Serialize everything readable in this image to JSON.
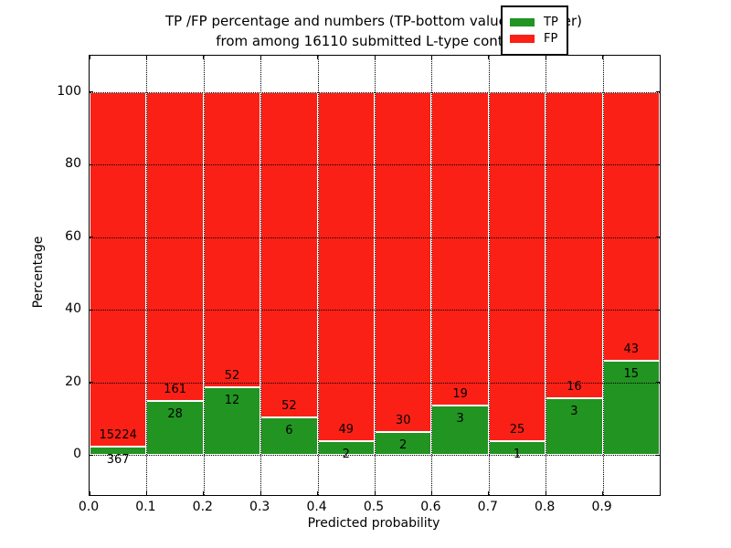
{
  "figure": {
    "title_line1": "TP /FP percentage and numbers (TP-bottom value, FP-upper)",
    "title_line2": "from among 16110 submitted L-type contacts"
  },
  "chart_data": {
    "type": "bar",
    "stacked": true,
    "normalized_to_percent": true,
    "title": "TP /FP percentage and numbers (TP-bottom value, FP-upper)\nfrom among 16110 submitted L-type contacts",
    "xlabel": "Predicted probability",
    "ylabel": "Percentage",
    "total_submitted_contacts": 16110,
    "bin_width": 0.1,
    "bin_starts": [
      0.0,
      0.1,
      0.2,
      0.3,
      0.4,
      0.5,
      0.6,
      0.7,
      0.8,
      0.9
    ],
    "categories": [
      "0.0-0.1",
      "0.1-0.2",
      "0.2-0.3",
      "0.3-0.4",
      "0.4-0.5",
      "0.5-0.6",
      "0.6-0.7",
      "0.7-0.8",
      "0.8-0.9",
      "0.9-1.0"
    ],
    "series": [
      {
        "name": "TP",
        "color": "#219421",
        "counts": [
          367,
          28,
          12,
          6,
          2,
          2,
          3,
          1,
          3,
          15
        ]
      },
      {
        "name": "FP",
        "color": "#fb2016",
        "counts": [
          15224,
          161,
          52,
          52,
          49,
          30,
          19,
          25,
          16,
          43
        ]
      }
    ],
    "percent_tp": [
      2.35,
      14.81,
      18.75,
      10.34,
      3.92,
      6.25,
      13.64,
      3.85,
      15.79,
      25.86
    ],
    "x_tick_labels": [
      "0.0",
      "0.1",
      "0.2",
      "0.3",
      "0.4",
      "0.5",
      "0.6",
      "0.7",
      "0.8",
      "0.9"
    ],
    "x_tick_values": [
      0.0,
      0.1,
      0.2,
      0.3,
      0.4,
      0.5,
      0.6,
      0.7,
      0.8,
      0.9
    ],
    "y_tick_values": [
      0,
      20,
      40,
      60,
      80,
      100
    ],
    "xlim": [
      0.0,
      1.0
    ],
    "ylim": [
      -11,
      110
    ],
    "grid": "dotted",
    "legend_position": "upper-right",
    "legend": [
      {
        "label": "TP",
        "color": "#219421"
      },
      {
        "label": "FP",
        "color": "#fb2016"
      }
    ]
  }
}
